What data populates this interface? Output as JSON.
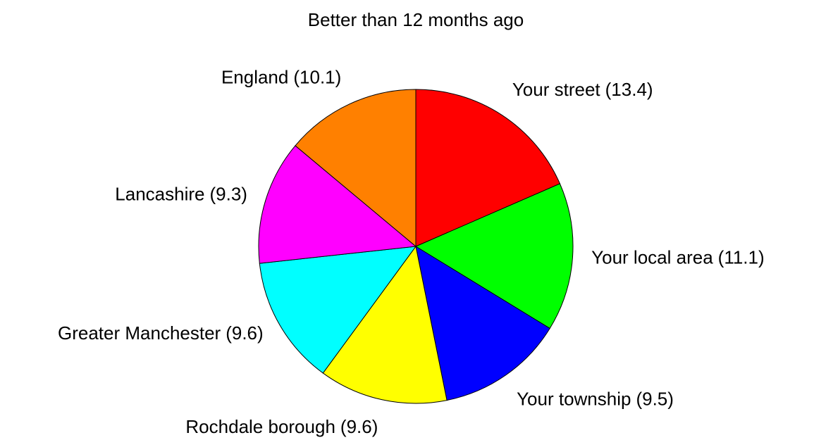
{
  "chart_data": {
    "type": "pie",
    "title": "Better than 12 months ago",
    "categories": [
      "Your street",
      "Your local area",
      "Your township",
      "Rochdale borough",
      "Greater Manchester",
      "Lancashire",
      "England"
    ],
    "values": [
      13.4,
      11.1,
      9.5,
      9.6,
      9.6,
      9.3,
      10.1
    ],
    "value_labels": [
      "(13.4)",
      "(11.1)",
      "(9.5)",
      "(9.6)",
      "(9.6)",
      "(9.3)",
      "(10.1)"
    ],
    "colors": [
      "#ff0000",
      "#00ff00",
      "#0000ff",
      "#ffff00",
      "#00ffff",
      "#ff00ff",
      "#ff8000"
    ]
  }
}
